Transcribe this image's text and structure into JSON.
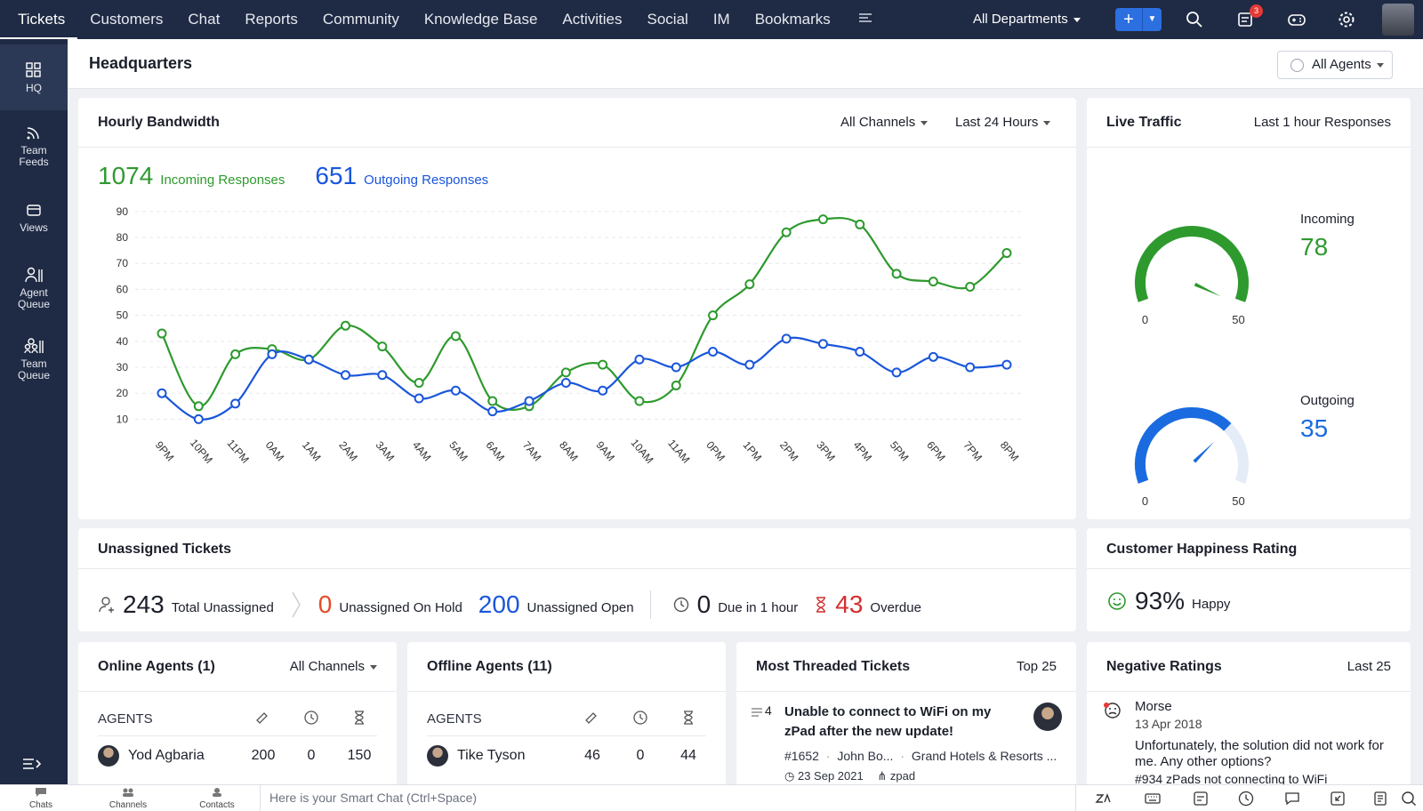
{
  "topnav": {
    "tabs": [
      "Tickets",
      "Customers",
      "Chat",
      "Reports",
      "Community",
      "Knowledge Base",
      "Activities",
      "Social",
      "IM",
      "Bookmarks"
    ],
    "more_icon": "menu-more-icon",
    "department": "All Departments",
    "add_label": "+",
    "notifications_count": "3"
  },
  "sidebar": {
    "items": [
      {
        "label": "HQ",
        "icon": "grid-icon"
      },
      {
        "label": "Team Feeds",
        "icon": "feed-icon"
      },
      {
        "label": "Views",
        "icon": "views-icon"
      },
      {
        "label": "Agent Queue",
        "icon": "agent-queue-icon"
      },
      {
        "label": "Team Queue",
        "icon": "team-queue-icon"
      }
    ]
  },
  "header": {
    "title": "Headquarters",
    "agents_filter": "All Agents"
  },
  "bandwidth": {
    "title": "Hourly Bandwidth",
    "channels_filter": "All Channels",
    "range_filter": "Last 24 Hours",
    "incoming_count": "1074",
    "incoming_label": "Incoming Responses",
    "outgoing_count": "651",
    "outgoing_label": "Outgoing Responses",
    "incoming_color": "#2e9a2e",
    "outgoing_color": "#1a56db"
  },
  "chart_data": {
    "type": "line",
    "categories": [
      "9PM",
      "10PM",
      "11PM",
      "0AM",
      "1AM",
      "2AM",
      "3AM",
      "4AM",
      "5AM",
      "6AM",
      "7AM",
      "8AM",
      "9AM",
      "10AM",
      "11AM",
      "0PM",
      "1PM",
      "2PM",
      "3PM",
      "4PM",
      "5PM",
      "6PM",
      "7PM",
      "8PM"
    ],
    "series": [
      {
        "name": "Incoming Responses",
        "color": "#2e9a2e",
        "values": [
          43,
          15,
          35,
          37,
          33,
          46,
          38,
          24,
          42,
          17,
          15,
          28,
          31,
          17,
          23,
          50,
          62,
          82,
          87,
          85,
          66,
          63,
          61,
          74
        ]
      },
      {
        "name": "Outgoing Responses",
        "color": "#1a56db",
        "values": [
          20,
          10,
          16,
          35,
          33,
          27,
          27,
          18,
          21,
          13,
          17,
          24,
          21,
          33,
          30,
          36,
          31,
          41,
          39,
          36,
          28,
          34,
          30,
          31
        ]
      }
    ],
    "yticks": [
      10,
      20,
      30,
      40,
      50,
      60,
      70,
      80,
      90
    ],
    "ylim": [
      5,
      92
    ],
    "grid": true
  },
  "live_traffic": {
    "title": "Live Traffic",
    "range": "Last 1 hour Responses",
    "gauges": [
      {
        "label": "Incoming",
        "value": "78",
        "min": "0",
        "max": "50",
        "color": "#2e9a2e",
        "fill": 1.0
      },
      {
        "label": "Outgoing",
        "value": "35",
        "min": "0",
        "max": "50",
        "color": "#1a6be0",
        "fill": 0.7
      }
    ]
  },
  "unassigned": {
    "title": "Unassigned Tickets",
    "total": "243",
    "total_label": "Total Unassigned",
    "hold": "0",
    "hold_label": "Unassigned On Hold",
    "open": "200",
    "open_label": "Unassigned Open",
    "due": "0",
    "due_label": "Due in 1 hour",
    "overdue": "43",
    "overdue_label": "Overdue"
  },
  "happiness": {
    "title": "Customer Happiness Rating",
    "value": "93%",
    "label": "Happy"
  },
  "online_agents": {
    "title": "Online Agents (1)",
    "filter": "All Channels",
    "col_label": "AGENTS",
    "rows": [
      {
        "name": "Yod Agbaria",
        "a": "200",
        "b": "0",
        "c": "150"
      }
    ]
  },
  "offline_agents": {
    "title": "Offline Agents (11)",
    "col_label": "AGENTS",
    "rows": [
      {
        "name": "Tike Tyson",
        "a": "46",
        "b": "0",
        "c": "44"
      }
    ]
  },
  "threaded": {
    "title": "Most Threaded Tickets",
    "filter": "Top 25",
    "count": "4",
    "subject_line1": "Unable to connect to WiFi on my",
    "subject_line2": "zPad after the new update!",
    "ticket_id": "#1652",
    "contact": "John Bo...",
    "account": "Grand Hotels & Resorts ...",
    "date": "23 Sep 2021",
    "product": "zpad"
  },
  "negative": {
    "title": "Negative Ratings",
    "filter": "Last 25",
    "name": "Morse",
    "date": "13 Apr 2018",
    "comment_line1": "Unfortunately, the solution did not work for",
    "comment_line2": "me. Any other options?",
    "ticket": "#934 zPads not connecting to WiFi"
  },
  "bottombar": {
    "items": [
      "Chats",
      "Channels",
      "Contacts"
    ],
    "smart_chat_placeholder": "Here is your Smart Chat (Ctrl+Space)"
  }
}
